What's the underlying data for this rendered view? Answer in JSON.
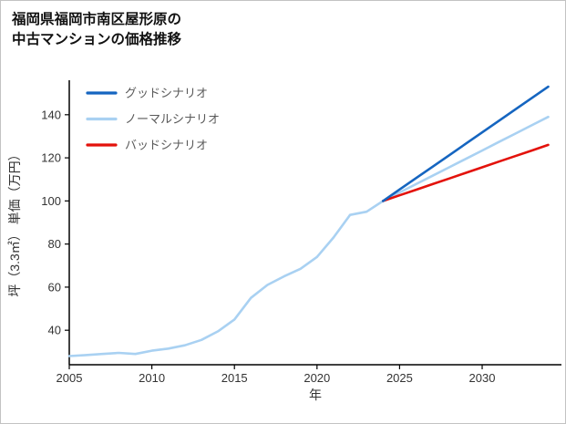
{
  "header": {
    "title_line1": "福岡県福岡市南区屋形原の",
    "title_line2": "中古マンションの価格推移"
  },
  "chart_data": {
    "type": "line",
    "title": "福岡県福岡市南区屋形原の中古マンションの価格推移",
    "xlabel": "年",
    "ylabel": "坪（3.3㎡） 単価（万円）",
    "xlim": [
      2005,
      2034.8
    ],
    "ylim": [
      24,
      156
    ],
    "xticks": [
      2005,
      2010,
      2015,
      2020,
      2025,
      2030
    ],
    "yticks": [
      40,
      60,
      80,
      100,
      120,
      140
    ],
    "grid": false,
    "legend_position": "top-left-inside",
    "axis_color": "#000000",
    "tick_label_color": "#333333",
    "legend_text_color": "#595959",
    "series": [
      {
        "name": "グッドシナリオ",
        "color": "#1565c0",
        "x": [
          2024,
          2025,
          2026,
          2027,
          2028,
          2029,
          2030,
          2031,
          2032,
          2033,
          2034
        ],
        "y": [
          100,
          105.3,
          110.6,
          115.9,
          121.2,
          126.5,
          131.8,
          137.1,
          142.4,
          147.7,
          153
        ]
      },
      {
        "name": "ノーマルシナリオ",
        "color": "#a9d1f2",
        "x": [
          2005,
          2006,
          2007,
          2008,
          2009,
          2010,
          2011,
          2012,
          2013,
          2014,
          2015,
          2016,
          2017,
          2018,
          2019,
          2020,
          2021,
          2022,
          2023,
          2024,
          2025,
          2026,
          2027,
          2028,
          2029,
          2030,
          2031,
          2032,
          2033,
          2034
        ],
        "y": [
          28,
          28.5,
          29,
          29.5,
          29,
          30.5,
          31.5,
          33,
          35.5,
          39.5,
          45,
          55,
          61,
          65,
          68.5,
          74,
          83,
          93.5,
          95,
          100,
          103.9,
          107.8,
          111.7,
          115.6,
          119.5,
          123.4,
          127.3,
          131.2,
          135.1,
          139
        ]
      },
      {
        "name": "バッドシナリオ",
        "color": "#e3120b",
        "x": [
          2024,
          2025,
          2026,
          2027,
          2028,
          2029,
          2030,
          2031,
          2032,
          2033,
          2034
        ],
        "y": [
          100,
          102.6,
          105.2,
          107.8,
          110.4,
          113,
          115.6,
          118.2,
          120.8,
          123.4,
          126
        ]
      }
    ]
  }
}
